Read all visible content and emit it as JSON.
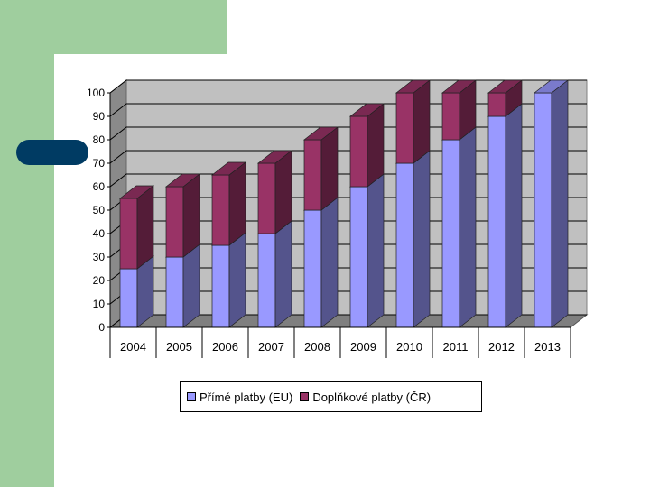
{
  "chart_data": {
    "type": "bar",
    "stacked": true,
    "title": "",
    "xlabel": "",
    "ylabel": "",
    "ylim": [
      0,
      100
    ],
    "yticks": [
      0,
      10,
      20,
      30,
      40,
      50,
      60,
      70,
      80,
      90,
      100
    ],
    "grid": true,
    "legend_position": "bottom",
    "categories": [
      "2004",
      "2005",
      "2006",
      "2007",
      "2008",
      "2009",
      "2010",
      "2011",
      "2012",
      "2013"
    ],
    "series": [
      {
        "name": "Přímé platby (EU)",
        "values": [
          25,
          30,
          35,
          40,
          50,
          60,
          70,
          80,
          90,
          100
        ],
        "color": "#9999ff"
      },
      {
        "name": "Doplňkové platby (ČR)",
        "values": [
          30,
          30,
          30,
          30,
          30,
          30,
          30,
          20,
          10,
          0
        ],
        "color": "#993366"
      }
    ]
  }
}
